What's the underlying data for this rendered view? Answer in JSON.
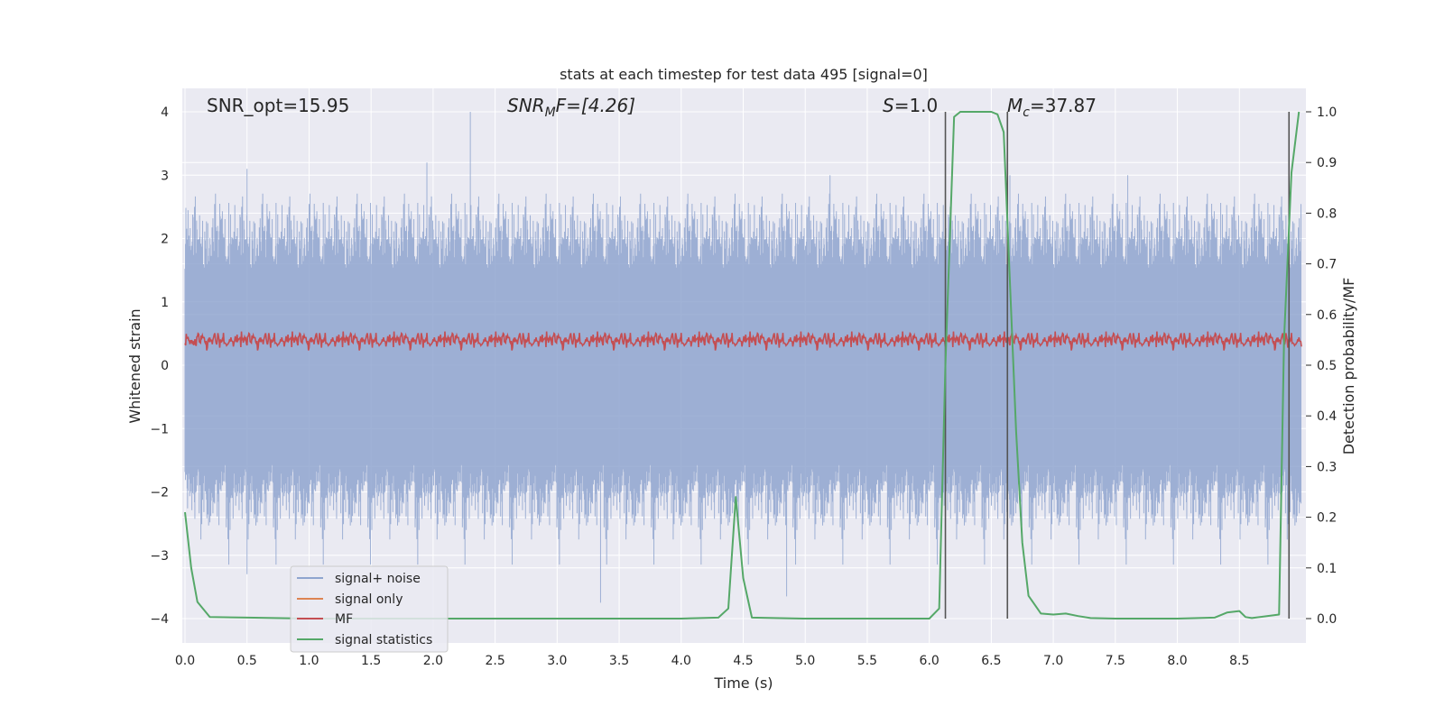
{
  "chart_data": {
    "type": "line",
    "title": "stats at each timestep for test data 495 [signal=0]",
    "xlabel": "Time (s)",
    "ylabel": "Whitened strain",
    "ylabel_right": "Detection probability/MF",
    "xlim": [
      0.0,
      9.0
    ],
    "ylim": [
      -4.4,
      4.4
    ],
    "ylim_right": [
      -0.048,
      1.048
    ],
    "xticks": [
      "0.0",
      "0.5",
      "1.0",
      "1.5",
      "2.0",
      "2.5",
      "3.0",
      "3.5",
      "4.0",
      "4.5",
      "5.0",
      "5.5",
      "6.0",
      "6.5",
      "7.0",
      "7.5",
      "8.0",
      "8.5"
    ],
    "yticks": [
      "−4",
      "−3",
      "−2",
      "−1",
      "0",
      "1",
      "2",
      "3",
      "4"
    ],
    "yticks_right": [
      "0.0",
      "0.1",
      "0.2",
      "0.3",
      "0.4",
      "0.5",
      "0.6",
      "0.7",
      "0.8",
      "0.9",
      "1.0"
    ],
    "grid": true,
    "legend_position": "lower-left",
    "annotations": {
      "snr_opt": "SNR_opt=15.95",
      "snr_mf_base": "SNR",
      "snr_mf_sub": "M",
      "snr_mf_rest": "F=[4.26]",
      "s_sym": "S",
      "s_rest": "=1.0",
      "mc_base": "M",
      "mc_sub": "c",
      "mc_rest": "=37.87"
    },
    "vertical_markers_x": [
      6.13,
      6.63,
      8.9
    ],
    "series": [
      {
        "name": "signal+ noise",
        "color": "#8fa5cf",
        "envelope_typical": [
          -1.6,
          1.6
        ],
        "envelope_extreme": [
          -3.8,
          4.0
        ],
        "sample_peaks": [
          {
            "x": 0.5,
            "y": 3.1
          },
          {
            "x": 2.3,
            "y": 4.0
          },
          {
            "x": 1.95,
            "y": 3.2
          },
          {
            "x": 5.2,
            "y": 3.0
          },
          {
            "x": 6.65,
            "y": 3.0
          },
          {
            "x": 7.6,
            "y": 3.0
          },
          {
            "x": 3.35,
            "y": -3.75
          },
          {
            "x": 4.85,
            "y": -3.65
          },
          {
            "x": 0.5,
            "y": -3.3
          }
        ]
      },
      {
        "name": "signal only",
        "color": "#dd8452",
        "values": []
      },
      {
        "name": "MF",
        "color": "#c44e52",
        "axis": "left",
        "envelope": [
          0.05,
          0.85
        ]
      },
      {
        "name": "signal statistics",
        "color": "#55a868",
        "axis": "right",
        "x": [
          0.0,
          0.05,
          0.1,
          0.2,
          0.5,
          1.0,
          2.0,
          3.0,
          4.0,
          4.3,
          4.38,
          4.44,
          4.5,
          4.57,
          5.0,
          6.0,
          6.08,
          6.13,
          6.2,
          6.25,
          6.5,
          6.55,
          6.6,
          6.7,
          6.75,
          6.8,
          6.9,
          7.0,
          7.1,
          7.2,
          7.3,
          7.5,
          8.0,
          8.3,
          8.4,
          8.5,
          8.55,
          8.6,
          8.82,
          8.86,
          8.92,
          8.98
        ],
        "y": [
          0.21,
          0.1,
          0.033,
          0.003,
          0.002,
          0.0,
          0.0,
          0.0,
          0.0,
          0.002,
          0.02,
          0.24,
          0.08,
          0.002,
          0.0,
          0.0,
          0.02,
          0.5,
          0.99,
          1.0,
          1.0,
          0.995,
          0.96,
          0.37,
          0.15,
          0.045,
          0.01,
          0.008,
          0.01,
          0.005,
          0.001,
          0.0,
          0.0,
          0.002,
          0.012,
          0.015,
          0.003,
          0.001,
          0.008,
          0.55,
          0.88,
          1.0
        ]
      }
    ]
  }
}
